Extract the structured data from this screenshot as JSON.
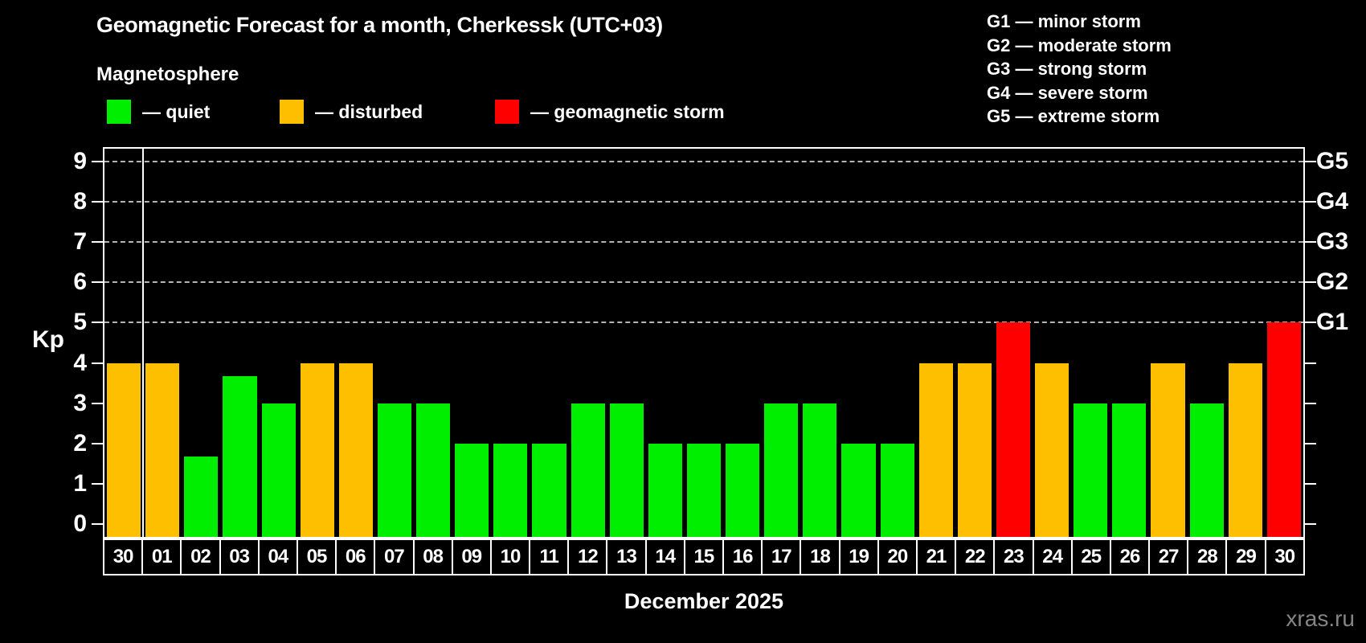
{
  "header": {
    "title": "Geomagnetic Forecast for a month, Cherkessk (UTC+03)",
    "subtitle": "Magnetosphere"
  },
  "legend": {
    "items": [
      {
        "name": "quiet",
        "label": "— quiet",
        "color": "#00ee00"
      },
      {
        "name": "disturbed",
        "label": "— disturbed",
        "color": "#fdbf00"
      },
      {
        "name": "storm",
        "label": "— geomagnetic storm",
        "color": "#ff0000"
      }
    ]
  },
  "g_legend": {
    "lines": [
      "G1 — minor storm",
      "G2 — moderate storm",
      "G3 — strong storm",
      "G4 — severe storm",
      "G5 — extreme storm"
    ]
  },
  "axis": {
    "y_label": "Kp",
    "y_ticks": [
      0,
      1,
      2,
      3,
      4,
      5,
      6,
      7,
      8,
      9
    ],
    "g_labels": [
      "G1",
      "G2",
      "G3",
      "G4",
      "G5"
    ],
    "x_title": "December 2025"
  },
  "watermark": "xras.ru",
  "chart_data": {
    "type": "bar",
    "title": "Geomagnetic Forecast for a month, Cherkessk (UTC+03)",
    "ylabel": "Kp",
    "xlabel": "December 2025",
    "ylim": [
      0,
      9.3
    ],
    "grid": "dashed horizontal lines at G-storm levels only",
    "gridlines_at": [
      5,
      6,
      7,
      8,
      9
    ],
    "legend_position": "top-left",
    "categories": [
      "30",
      "01",
      "02",
      "03",
      "04",
      "05",
      "06",
      "07",
      "08",
      "09",
      "10",
      "11",
      "12",
      "13",
      "14",
      "15",
      "16",
      "17",
      "18",
      "19",
      "20",
      "21",
      "22",
      "23",
      "24",
      "25",
      "26",
      "27",
      "28",
      "29",
      "30"
    ],
    "values": [
      4,
      4,
      1.67,
      3.67,
      3,
      4,
      4,
      3,
      3,
      2,
      2,
      2,
      3,
      3,
      2,
      2,
      2,
      3,
      3,
      2,
      2,
      4,
      4,
      5,
      4,
      3,
      3,
      4,
      3,
      4,
      5
    ],
    "status": [
      "disturbed",
      "disturbed",
      "quiet",
      "quiet",
      "quiet",
      "disturbed",
      "disturbed",
      "quiet",
      "quiet",
      "quiet",
      "quiet",
      "quiet",
      "quiet",
      "quiet",
      "quiet",
      "quiet",
      "quiet",
      "quiet",
      "quiet",
      "quiet",
      "quiet",
      "disturbed",
      "disturbed",
      "storm",
      "disturbed",
      "quiet",
      "quiet",
      "disturbed",
      "quiet",
      "disturbed",
      "storm"
    ],
    "status_colors": {
      "quiet": "#00ee00",
      "disturbed": "#fdbf00",
      "storm": "#ff0000"
    },
    "prev_month_separator_after_index": 0
  }
}
